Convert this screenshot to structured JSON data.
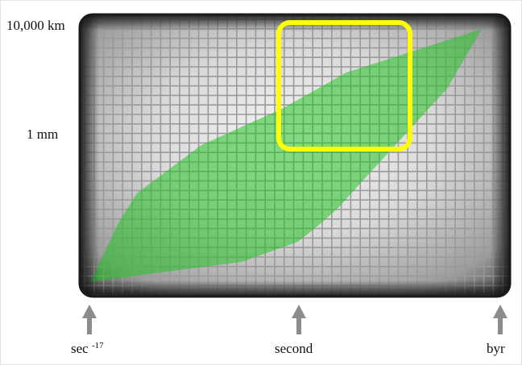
{
  "y_axis": {
    "labels": [
      "10,000 km",
      "1 mm"
    ]
  },
  "x_axis": {
    "labels": [
      {
        "base": "sec",
        "exponent": "-17"
      },
      {
        "base": "second",
        "exponent": ""
      },
      {
        "base": "byr",
        "exponent": ""
      }
    ]
  },
  "colors": {
    "grid_panel": "#7a7a7a",
    "grid_lines": "#9a9a9a",
    "band": "#22c322",
    "highlight": "#ffff00",
    "arrows": "#8c8c8c"
  },
  "icons": [
    "up-arrow-icon"
  ]
}
